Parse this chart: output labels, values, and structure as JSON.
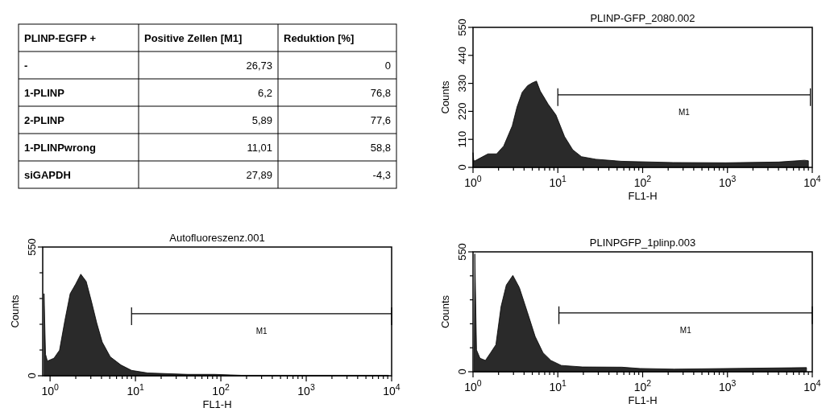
{
  "chart_data": [
    {
      "type": "other",
      "legend_title": "PLINP-EGFP +",
      "categories": [
        "-",
        "1-PLINP",
        "2-PLINP",
        "1-PLINPwrong",
        "siGAPDH"
      ],
      "series": [
        {
          "name": "Positive Zellen [M1]",
          "values": [
            26.73,
            6.2,
            5.89,
            11.01,
            27.89
          ],
          "value_labels": [
            "26,73",
            "6,2",
            "5,89",
            "11,01",
            "27,89"
          ]
        },
        {
          "name": "Reduktion [%]",
          "values": [
            0,
            76.8,
            77.6,
            58.8,
            -4.3
          ],
          "value_labels": [
            "0",
            "76,8",
            "77,6",
            "58,8",
            "-4,3"
          ]
        }
      ]
    },
    {
      "type": "area",
      "title": "PLINP-GFP_2080.002",
      "xlabel": "FL1-H",
      "ylabel": "Counts",
      "log": "x",
      "series": [
        {
          "type": "area",
          "color": "#2a2a2a",
          "x": [
            1,
            1.02,
            1.06,
            1.22,
            1.5,
            1.9,
            2.3,
            2.9,
            3.3,
            3.8,
            4.4,
            5,
            5.6,
            6.2,
            7.7,
            9.5,
            12,
            15,
            19,
            28,
            56,
            230,
            960,
            4000,
            8100,
            9000
          ],
          "values": [
            58,
            26,
            26,
            37,
            53,
            53,
            84,
            163,
            237,
            295,
            321,
            332,
            339,
            300,
            248,
            206,
            121,
            69,
            42,
            32,
            24,
            19,
            18,
            21,
            28,
            26
          ]
        },
        {
          "type": "line",
          "name": "M1",
          "color": "#000000",
          "x": [
            10,
            9500
          ],
          "values": [
            285,
            285
          ]
        }
      ],
      "xlim": [
        1,
        10000
      ],
      "ylim": [
        0,
        550
      ],
      "xticks": [
        {
          "value": 1,
          "label": "10$^{0}$"
        },
        {
          "value": 2,
          "label": null
        },
        {
          "value": 3,
          "label": null
        },
        {
          "value": 4,
          "label": null
        },
        {
          "value": 5,
          "label": null
        },
        {
          "value": 6,
          "label": null
        },
        {
          "value": 7,
          "label": null
        },
        {
          "value": 8,
          "label": null
        },
        {
          "value": 9,
          "label": null
        },
        {
          "value": 10,
          "label": "10$^{1}$"
        },
        {
          "value": 20,
          "label": null
        },
        {
          "value": 30,
          "label": null
        },
        {
          "value": 40,
          "label": null
        },
        {
          "value": 50,
          "label": null
        },
        {
          "value": 60,
          "label": null
        },
        {
          "value": 70,
          "label": null
        },
        {
          "value": 80,
          "label": null
        },
        {
          "value": 90,
          "label": null
        },
        {
          "value": 100,
          "label": "10$^{2}$"
        },
        {
          "value": 200,
          "label": null
        },
        {
          "value": 300,
          "label": null
        },
        {
          "value": 400,
          "label": null
        },
        {
          "value": 500,
          "label": null
        },
        {
          "value": 600,
          "label": null
        },
        {
          "value": 700,
          "label": null
        },
        {
          "value": 800,
          "label": null
        },
        {
          "value": 900,
          "label": null
        },
        {
          "value": 1000,
          "label": "10$^{3}$"
        },
        {
          "value": 2000,
          "label": null
        },
        {
          "value": 3000,
          "label": null
        },
        {
          "value": 4000,
          "label": null
        },
        {
          "value": 5000,
          "label": null
        },
        {
          "value": 6000,
          "label": null
        },
        {
          "value": 7000,
          "label": null
        },
        {
          "value": 8000,
          "label": null
        },
        {
          "value": 9000,
          "label": null
        },
        {
          "value": 10000,
          "label": "10$^{4}$"
        }
      ],
      "yticks": [
        0,
        110,
        220,
        330,
        440,
        550
      ]
    },
    {
      "type": "area",
      "title": "Autofluoreszenz.001",
      "xlabel": "FL1-H",
      "ylabel": "Counts",
      "log": "x",
      "series": [
        {
          "type": "area",
          "color": "#2a2a2a",
          "x": [
            0.85,
            0.885,
            0.93,
            1.11,
            1.29,
            1.49,
            1.72,
            1.99,
            2.29,
            2.65,
            3.06,
            3.53,
            4.08,
            5.07,
            6.76,
            9,
            13.9,
            41,
            84,
            174,
            9200
          ],
          "values": [
            351,
            92,
            63,
            75,
            109,
            236,
            351,
            391,
            434,
            403,
            316,
            224,
            144,
            81,
            46,
            23,
            12,
            6,
            6,
            2,
            2
          ]
        },
        {
          "type": "line",
          "name": "M1",
          "color": "#000000",
          "x": [
            9,
            10000
          ],
          "values": [
            265,
            265
          ]
        }
      ],
      "xlim": [
        0.82,
        10000
      ],
      "ylim": [
        0,
        550
      ],
      "xticks": [
        {
          "value": 1,
          "label": "10$^{0}$"
        },
        {
          "value": 2,
          "label": null
        },
        {
          "value": 3,
          "label": null
        },
        {
          "value": 4,
          "label": null
        },
        {
          "value": 5,
          "label": null
        },
        {
          "value": 6,
          "label": null
        },
        {
          "value": 7,
          "label": null
        },
        {
          "value": 8,
          "label": null
        },
        {
          "value": 9,
          "label": null
        },
        {
          "value": 10,
          "label": "10$^{1}$"
        },
        {
          "value": 20,
          "label": null
        },
        {
          "value": 30,
          "label": null
        },
        {
          "value": 40,
          "label": null
        },
        {
          "value": 50,
          "label": null
        },
        {
          "value": 60,
          "label": null
        },
        {
          "value": 70,
          "label": null
        },
        {
          "value": 80,
          "label": null
        },
        {
          "value": 90,
          "label": null
        },
        {
          "value": 100,
          "label": "10$^{2}$"
        },
        {
          "value": 200,
          "label": null
        },
        {
          "value": 300,
          "label": null
        },
        {
          "value": 400,
          "label": null
        },
        {
          "value": 500,
          "label": null
        },
        {
          "value": 600,
          "label": null
        },
        {
          "value": 700,
          "label": null
        },
        {
          "value": 800,
          "label": null
        },
        {
          "value": 900,
          "label": null
        },
        {
          "value": 1000,
          "label": "10$^{3}$"
        },
        {
          "value": 2000,
          "label": null
        },
        {
          "value": 3000,
          "label": null
        },
        {
          "value": 4000,
          "label": null
        },
        {
          "value": 5000,
          "label": null
        },
        {
          "value": 6000,
          "label": null
        },
        {
          "value": 7000,
          "label": null
        },
        {
          "value": 8000,
          "label": null
        },
        {
          "value": 9000,
          "label": null
        },
        {
          "value": 10000,
          "label": "10$^{4}$"
        }
      ],
      "yticks": [
        0,
        {
          "value": 110,
          "label": null
        },
        {
          "value": 220,
          "label": null
        },
        {
          "value": 330,
          "label": null
        },
        {
          "value": 440,
          "label": null
        },
        550
      ]
    },
    {
      "type": "area",
      "title": "PLINPGFP_1plinp.003",
      "xlabel": "FL1-H",
      "ylabel": "Counts",
      "log": "x",
      "series": [
        {
          "type": "area",
          "color": "#2a2a2a",
          "x": [
            1.03,
            1.05,
            1.1,
            1.21,
            1.4,
            1.61,
            1.86,
            2.14,
            2.47,
            2.95,
            3.52,
            4.37,
            5.4,
            6.69,
            8.28,
            11,
            19.5,
            56.6,
            93,
            235,
            8550
          ],
          "values": [
            0,
            541,
            100,
            62,
            52,
            87,
            124,
            299,
            398,
            442,
            386,
            274,
            162,
            87,
            52,
            29,
            22,
            21,
            15,
            12,
            19
          ]
        },
        {
          "type": "line",
          "name": "M1",
          "color": "#000000",
          "x": [
            10.3,
            10000
          ],
          "values": [
            270,
            270
          ]
        }
      ],
      "xlim": [
        1,
        10000
      ],
      "ylim": [
        0,
        550
      ],
      "xticks": [
        {
          "value": 1,
          "label": "10$^{0}$"
        },
        {
          "value": 2,
          "label": null
        },
        {
          "value": 3,
          "label": null
        },
        {
          "value": 4,
          "label": null
        },
        {
          "value": 5,
          "label": null
        },
        {
          "value": 6,
          "label": null
        },
        {
          "value": 7,
          "label": null
        },
        {
          "value": 8,
          "label": null
        },
        {
          "value": 9,
          "label": null
        },
        {
          "value": 10,
          "label": "10$^{1}$"
        },
        {
          "value": 20,
          "label": null
        },
        {
          "value": 30,
          "label": null
        },
        {
          "value": 40,
          "label": null
        },
        {
          "value": 50,
          "label": null
        },
        {
          "value": 60,
          "label": null
        },
        {
          "value": 70,
          "label": null
        },
        {
          "value": 80,
          "label": null
        },
        {
          "value": 90,
          "label": null
        },
        {
          "value": 100,
          "label": "10$^{2}$"
        },
        {
          "value": 200,
          "label": null
        },
        {
          "value": 300,
          "label": null
        },
        {
          "value": 400,
          "label": null
        },
        {
          "value": 500,
          "label": null
        },
        {
          "value": 600,
          "label": null
        },
        {
          "value": 700,
          "label": null
        },
        {
          "value": 800,
          "label": null
        },
        {
          "value": 900,
          "label": null
        },
        {
          "value": 1000,
          "label": "10$^{3}$"
        },
        {
          "value": 2000,
          "label": null
        },
        {
          "value": 3000,
          "label": null
        },
        {
          "value": 4000,
          "label": null
        },
        {
          "value": 5000,
          "label": null
        },
        {
          "value": 6000,
          "label": null
        },
        {
          "value": 7000,
          "label": null
        },
        {
          "value": 8000,
          "label": null
        },
        {
          "value": 9000,
          "label": null
        },
        {
          "value": 10000,
          "label": "10$^{4}$"
        }
      ],
      "yticks": [
        0,
        {
          "value": 110,
          "label": null
        },
        {
          "value": 220,
          "label": null
        },
        {
          "value": 330,
          "label": null
        },
        {
          "value": 440,
          "label": null
        },
        550
      ]
    }
  ]
}
